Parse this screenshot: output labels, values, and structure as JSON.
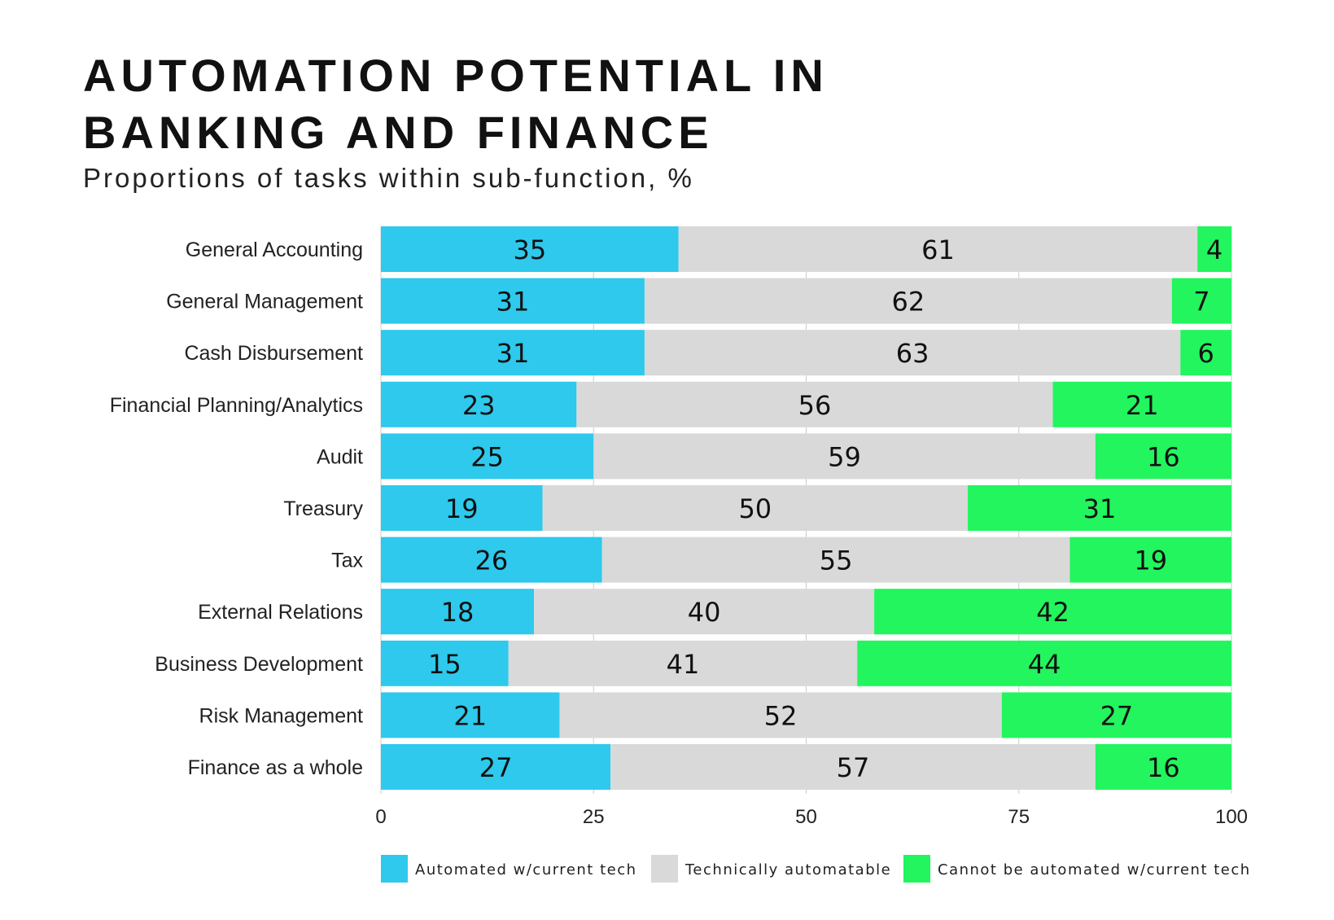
{
  "title_lines": [
    "AUTOMATION POTENTIAL IN",
    "BANKING AND FINANCE"
  ],
  "subtitle": "Proportions of tasks within sub-function, %",
  "chart_data": {
    "type": "bar",
    "orientation": "horizontal",
    "stacked": true,
    "title": "AUTOMATION POTENTIAL IN BANKING AND FINANCE",
    "subtitle": "Proportions of tasks within sub-function, %",
    "categories": [
      "General Accounting",
      "General Management",
      "Cash Disbursement",
      "Financial Planning/Analytics",
      "Audit",
      "Treasury",
      "Tax",
      "External Relations",
      "Business Development",
      "Risk Management",
      "Finance as a whole"
    ],
    "series": [
      {
        "name": "Automated w/current tech",
        "color": "#2ec9ec",
        "values": [
          35,
          31,
          31,
          23,
          25,
          19,
          26,
          18,
          15,
          21,
          27
        ]
      },
      {
        "name": "Technically automatable",
        "color": "#d9d9d9",
        "values": [
          61,
          62,
          63,
          56,
          59,
          50,
          55,
          40,
          41,
          52,
          57
        ]
      },
      {
        "name": "Cannot be automated w/current tech",
        "color": "#22f55e",
        "values": [
          4,
          7,
          6,
          21,
          16,
          31,
          19,
          42,
          44,
          27,
          16
        ]
      }
    ],
    "xlim": [
      0,
      100
    ],
    "xticks": [
      "0",
      "25",
      "50",
      "75",
      "100"
    ],
    "grid": true,
    "legend_position": "bottom"
  }
}
